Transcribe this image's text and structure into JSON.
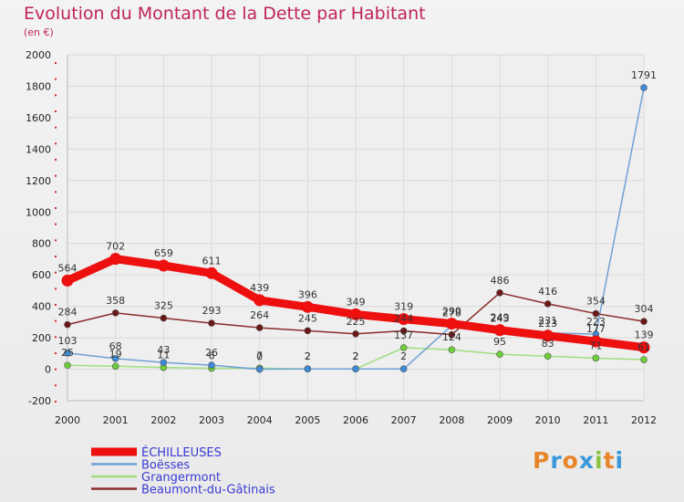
{
  "header": {
    "title": "Evolution du Montant de la Dette par Habitant",
    "subtitle": "(en €)"
  },
  "logo": {
    "letters": [
      "P",
      "r",
      "o",
      "x",
      "i",
      "t",
      "i"
    ],
    "colors": [
      "#e8852b",
      "#3a9ad9",
      "#e8852b",
      "#3a9ad9",
      "#8ac43f",
      "#e8852b",
      "#3a9ad9"
    ]
  },
  "chart_data": {
    "type": "line",
    "title": "Evolution du Montant de la Dette par Habitant",
    "subtitle": "(en €)",
    "x": [
      "2000",
      "2001",
      "2002",
      "2003",
      "2004",
      "2005",
      "2006",
      "2007",
      "2008",
      "2009",
      "2010",
      "2011",
      "2012"
    ],
    "ylim": [
      -200,
      2000
    ],
    "yticks": [
      -200,
      0,
      200,
      400,
      600,
      800,
      1000,
      1200,
      1400,
      1600,
      1800,
      2000
    ],
    "grid": true,
    "legend_position": "bottom-left",
    "series": [
      {
        "name": "ÉCHILLEUSES",
        "color": "#ee0f0f",
        "marker": "#ee0f0f",
        "values": [
          564,
          702,
          659,
          611,
          439,
          396,
          349,
          319,
          290,
          249,
          213,
          177,
          139
        ],
        "labels": [
          "564",
          "702",
          "659",
          "611",
          "439",
          "396",
          "349",
          "319",
          "290",
          "249",
          "213",
          "177",
          "139"
        ]
      },
      {
        "name": "Boësses",
        "color": "#6fa1d6",
        "marker": "#3d8bd6",
        "values": [
          103,
          68,
          43,
          26,
          0,
          2,
          2,
          2,
          278,
          243,
          231,
          223,
          1791
        ],
        "labels": [
          "103",
          "68",
          "43",
          "26",
          "0",
          "2",
          "2",
          "2",
          "278",
          "243",
          "231",
          "223",
          "1791"
        ]
      },
      {
        "name": "Grangermont",
        "color": "#9fde7f",
        "marker": "#6ccf3a",
        "values": [
          25,
          19,
          11,
          6,
          7,
          2,
          2,
          137,
          124,
          95,
          83,
          71,
          61
        ],
        "labels": [
          "25",
          "19",
          "11",
          "6",
          "7",
          "2",
          "2",
          "137",
          "124",
          "95",
          "83",
          "71",
          "61"
        ]
      },
      {
        "name": "Beaumont-du-Gâtinais",
        "color": "#8b2a2a",
        "marker": "#6b1717",
        "values": [
          284,
          358,
          325,
          293,
          264,
          245,
          225,
          244,
          220,
          486,
          416,
          354,
          304
        ],
        "labels": [
          "284",
          "358",
          "325",
          "293",
          "264",
          "245",
          "225",
          "244",
          "",
          "486",
          "416",
          "354",
          "304"
        ]
      }
    ]
  }
}
